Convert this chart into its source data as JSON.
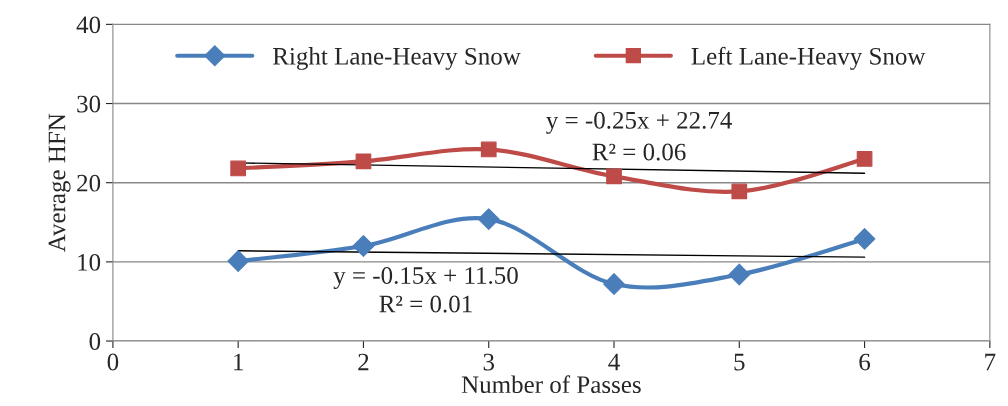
{
  "chart_data": {
    "type": "line",
    "xlabel": "Number of Passes",
    "ylabel": "Average HFN",
    "xlim": [
      0,
      7
    ],
    "xticks": [
      0,
      1,
      2,
      3,
      4,
      5,
      6,
      7
    ],
    "ylim": [
      0,
      40
    ],
    "yticks": [
      0,
      10,
      20,
      30,
      40
    ],
    "grid": "y",
    "legend": "top",
    "series": [
      {
        "name": "Right Lane-Heavy Snow",
        "color": "#4a7ebb",
        "marker": "diamond",
        "x": [
          1,
          2,
          3,
          4,
          5,
          6
        ],
        "values": [
          10.1,
          12.0,
          15.4,
          7.2,
          8.4,
          12.9
        ]
      },
      {
        "name": "Left Lane-Heavy Snow",
        "color": "#be4b48",
        "marker": "square",
        "x": [
          1,
          2,
          3,
          4,
          5,
          6
        ],
        "values": [
          21.8,
          22.7,
          24.2,
          20.8,
          18.9,
          23.0
        ]
      },
      {
        "color": "#000000",
        "marker": "none",
        "x": [
          1,
          6
        ],
        "values": [
          11.4,
          10.6
        ]
      },
      {
        "color": "#000000",
        "marker": "none",
        "x": [
          1,
          6
        ],
        "values": [
          22.5,
          21.2
        ]
      }
    ],
    "annotations": [
      "y = -0.15x + 11.50",
      "R² = 0.01",
      "y = -0.25x + 22.74",
      "R² = 0.06"
    ]
  }
}
